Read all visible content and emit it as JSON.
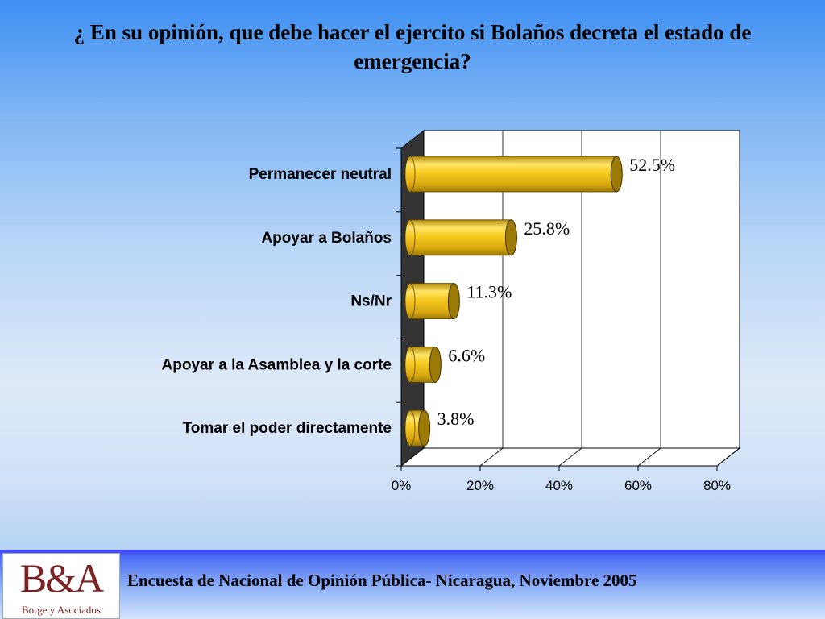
{
  "slide": {
    "title": "¿ En su opinión, que debe hacer el ejercito si Bolaños decreta el estado de emergencia?",
    "footer": "Encuesta de Nacional de Opinión Pública- Nicaragua, Noviembre 2005",
    "logo_mark": "B&A",
    "logo_sub": "Borge y Asociados"
  },
  "colors": {
    "bar": "#f2c21a",
    "bar_light": "#ffe468",
    "bar_dark": "#9c7a06",
    "wall": "#333333"
  },
  "chart_data": {
    "type": "bar",
    "orientation": "horizontal",
    "categories": [
      "Permanecer neutral",
      "Apoyar a Bolaños",
      "Ns/Nr",
      "Apoyar a la Asamblea y la corte",
      "Tomar el poder directamente"
    ],
    "values": [
      52.5,
      25.8,
      11.3,
      6.6,
      3.8
    ],
    "data_labels": [
      "52.5%",
      "25.8%",
      "11.3%",
      "6.6%",
      "3.8%"
    ],
    "xticks": [
      "0%",
      "20%",
      "40%",
      "60%",
      "80%"
    ],
    "xlim": [
      0,
      80
    ],
    "grid": true,
    "style": "3d-cylinder"
  }
}
